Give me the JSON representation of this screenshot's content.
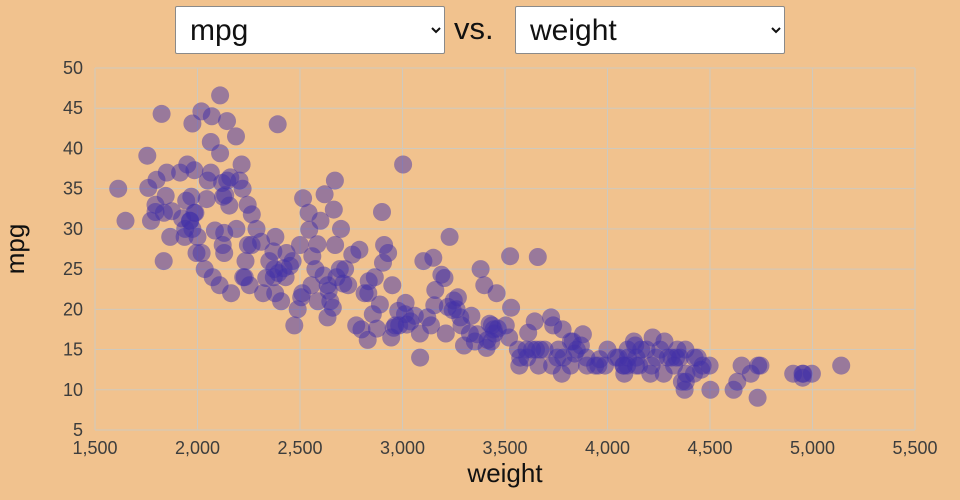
{
  "header": {
    "y_select": {
      "value": "mpg"
    },
    "vs_label": "vs.",
    "x_select": {
      "value": "weight"
    }
  },
  "colors": {
    "background": "#f1c28e",
    "gridline": "#cfc9bd",
    "tick_text": "#3d3d3d",
    "axis_text": "#111111",
    "point": "#4130a8",
    "select_bg": "#ffffff"
  },
  "chart_data": {
    "type": "scatter",
    "title": "",
    "xlabel": "weight",
    "ylabel": "mpg",
    "xlim": [
      1500,
      5500
    ],
    "ylim": [
      5,
      50
    ],
    "grid": true,
    "legend": "none",
    "x_tick_values": [
      1500,
      2000,
      2500,
      3000,
      3500,
      4000,
      4500,
      5000,
      5500
    ],
    "x_tick_labels": [
      "1,500",
      "2,000",
      "2,500",
      "3,000",
      "3,500",
      "4,000",
      "4,500",
      "5,000",
      "5,500"
    ],
    "y_tick_values": [
      5,
      10,
      15,
      20,
      25,
      30,
      35,
      40,
      45,
      50
    ],
    "y_tick_labels": [
      "5",
      "10",
      "15",
      "20",
      "25",
      "30",
      "35",
      "40",
      "45",
      "50"
    ],
    "point_color": "#4130a8",
    "point_opacity": 0.5,
    "point_radius": 9,
    "points": [
      [
        1613,
        35
      ],
      [
        1649,
        31
      ],
      [
        1755,
        39.1
      ],
      [
        1760,
        35.1
      ],
      [
        1773,
        31
      ],
      [
        1795,
        33
      ],
      [
        1795,
        32.1
      ],
      [
        1800,
        36.1
      ],
      [
        1825,
        44.3
      ],
      [
        1835,
        26
      ],
      [
        1836,
        32
      ],
      [
        1845,
        34.1
      ],
      [
        1850,
        37
      ],
      [
        1867,
        29
      ],
      [
        1875,
        32.2
      ],
      [
        1915,
        37
      ],
      [
        1925,
        31.3
      ],
      [
        1937,
        29
      ],
      [
        1940,
        30
      ],
      [
        1945,
        33.5
      ],
      [
        1950,
        38
      ],
      [
        1963,
        31
      ],
      [
        1965,
        31
      ],
      [
        1970,
        34
      ],
      [
        1975,
        30
      ],
      [
        1975,
        43.1
      ],
      [
        1985,
        32
      ],
      [
        1985,
        37.3
      ],
      [
        1990,
        32
      ],
      [
        1995,
        27
      ],
      [
        2000,
        29
      ],
      [
        2019,
        44.6
      ],
      [
        2020,
        27
      ],
      [
        2035,
        25
      ],
      [
        2045,
        33.7
      ],
      [
        2050,
        36
      ],
      [
        2065,
        37
      ],
      [
        2065,
        40.8
      ],
      [
        2070,
        44
      ],
      [
        2074,
        24
      ],
      [
        2085,
        29.8
      ],
      [
        2108,
        23
      ],
      [
        2110,
        46.6
      ],
      [
        2110,
        39.4
      ],
      [
        2120,
        35.7
      ],
      [
        2123,
        28
      ],
      [
        2125,
        34
      ],
      [
        2130,
        27
      ],
      [
        2130,
        29.5
      ],
      [
        2135,
        34.2
      ],
      [
        2144,
        43.4
      ],
      [
        2145,
        36
      ],
      [
        2155,
        32.9
      ],
      [
        2160,
        36.4
      ],
      [
        2164,
        22
      ],
      [
        2188,
        41.5
      ],
      [
        2190,
        30
      ],
      [
        2205,
        36
      ],
      [
        2215,
        38
      ],
      [
        2220,
        35
      ],
      [
        2223,
        24
      ],
      [
        2230,
        24
      ],
      [
        2234,
        26
      ],
      [
        2245,
        33
      ],
      [
        2246,
        28
      ],
      [
        2254,
        23
      ],
      [
        2264,
        28
      ],
      [
        2265,
        31.8
      ],
      [
        2288,
        30
      ],
      [
        2310,
        28.4
      ],
      [
        2320,
        22
      ],
      [
        2335,
        23.9
      ],
      [
        2350,
        26
      ],
      [
        2370,
        27.2
      ],
      [
        2372,
        24
      ],
      [
        2375,
        25
      ],
      [
        2379,
        22
      ],
      [
        2380,
        29
      ],
      [
        2391,
        43
      ],
      [
        2395,
        24.5
      ],
      [
        2408,
        21
      ],
      [
        2420,
        25.1
      ],
      [
        2430,
        24
      ],
      [
        2434,
        27
      ],
      [
        2451,
        25.4
      ],
      [
        2464,
        26
      ],
      [
        2472,
        18
      ],
      [
        2489,
        20
      ],
      [
        2500,
        28
      ],
      [
        2506,
        21.5
      ],
      [
        2511,
        22
      ],
      [
        2515,
        33.8
      ],
      [
        2542,
        32
      ],
      [
        2545,
        29.9
      ],
      [
        2556,
        23
      ],
      [
        2560,
        26.6
      ],
      [
        2575,
        25
      ],
      [
        2585,
        28.1
      ],
      [
        2587,
        21
      ],
      [
        2600,
        31
      ],
      [
        2615,
        24.2
      ],
      [
        2620,
        34.3
      ],
      [
        2634,
        19
      ],
      [
        2635,
        23
      ],
      [
        2640,
        22.3
      ],
      [
        2648,
        21
      ],
      [
        2660,
        20.2
      ],
      [
        2665,
        32.4
      ],
      [
        2670,
        36
      ],
      [
        2671,
        28
      ],
      [
        2678,
        24
      ],
      [
        2694,
        25
      ],
      [
        2700,
        30
      ],
      [
        2711,
        23.2
      ],
      [
        2720,
        25
      ],
      [
        2735,
        23
      ],
      [
        2755,
        26.8
      ],
      [
        2774,
        18
      ],
      [
        2790,
        27.4
      ],
      [
        2800,
        17.5
      ],
      [
        2815,
        22
      ],
      [
        2830,
        16.2
      ],
      [
        2833,
        22
      ],
      [
        2835,
        23.5
      ],
      [
        2855,
        19.4
      ],
      [
        2865,
        24
      ],
      [
        2875,
        17.6
      ],
      [
        2890,
        20.6
      ],
      [
        2900,
        32.1
      ],
      [
        2905,
        25.8
      ],
      [
        2910,
        28
      ],
      [
        2930,
        27
      ],
      [
        2945,
        16.5
      ],
      [
        2950,
        23
      ],
      [
        2957,
        17.7
      ],
      [
        2965,
        18
      ],
      [
        2979,
        19.8
      ],
      [
        2984,
        18
      ],
      [
        3003,
        38
      ],
      [
        3012,
        19.4
      ],
      [
        3015,
        20.8
      ],
      [
        3021,
        18.1
      ],
      [
        3039,
        18.5
      ],
      [
        3060,
        19.2
      ],
      [
        3085,
        17
      ],
      [
        3086,
        14
      ],
      [
        3102,
        26
      ],
      [
        3121,
        19
      ],
      [
        3139,
        18
      ],
      [
        3150,
        26.4
      ],
      [
        3155,
        20.5
      ],
      [
        3160,
        22.4
      ],
      [
        3190,
        24.3
      ],
      [
        3205,
        23.9
      ],
      [
        3211,
        17
      ],
      [
        3221,
        20.3
      ],
      [
        3230,
        29
      ],
      [
        3245,
        19.9
      ],
      [
        3250,
        21.1
      ],
      [
        3264,
        20
      ],
      [
        3270,
        21.5
      ],
      [
        3282,
        19
      ],
      [
        3288,
        18
      ],
      [
        3300,
        15.5
      ],
      [
        3329,
        17
      ],
      [
        3336,
        19.2
      ],
      [
        3353,
        16
      ],
      [
        3365,
        16.9
      ],
      [
        3381,
        25
      ],
      [
        3399,
        23
      ],
      [
        3410,
        15.2
      ],
      [
        3415,
        16.2
      ],
      [
        3425,
        18.2
      ],
      [
        3433,
        16
      ],
      [
        3436,
        18
      ],
      [
        3445,
        17.5
      ],
      [
        3449,
        17
      ],
      [
        3459,
        22
      ],
      [
        3465,
        17.6
      ],
      [
        3504,
        18
      ],
      [
        3520,
        16.5
      ],
      [
        3525,
        26.6
      ],
      [
        3530,
        20.2
      ],
      [
        3563,
        15
      ],
      [
        3570,
        13
      ],
      [
        3574,
        14
      ],
      [
        3605,
        15
      ],
      [
        3609,
        14
      ],
      [
        3613,
        17.1
      ],
      [
        3632,
        15
      ],
      [
        3645,
        18.5
      ],
      [
        3651,
        15
      ],
      [
        3660,
        26.5
      ],
      [
        3664,
        13
      ],
      [
        3672,
        15
      ],
      [
        3693,
        15
      ],
      [
        3725,
        19
      ],
      [
        3730,
        13
      ],
      [
        3735,
        18
      ],
      [
        3755,
        14
      ],
      [
        3761,
        15
      ],
      [
        3777,
        12
      ],
      [
        3781,
        17.5
      ],
      [
        3785,
        14
      ],
      [
        3820,
        13
      ],
      [
        3821,
        16
      ],
      [
        3830,
        16
      ],
      [
        3840,
        14.5
      ],
      [
        3850,
        15
      ],
      [
        3870,
        15.5
      ],
      [
        3880,
        16.9
      ],
      [
        3897,
        14
      ],
      [
        3900,
        13
      ],
      [
        3940,
        13
      ],
      [
        3955,
        13
      ],
      [
        3962,
        13.8
      ],
      [
        3988,
        13
      ],
      [
        4000,
        15
      ],
      [
        4042,
        14
      ],
      [
        4054,
        14
      ],
      [
        4077,
        13
      ],
      [
        4080,
        13
      ],
      [
        4082,
        12
      ],
      [
        4096,
        13
      ],
      [
        4098,
        15
      ],
      [
        4100,
        14
      ],
      [
        4129,
        16
      ],
      [
        4135,
        15.5
      ],
      [
        4140,
        13
      ],
      [
        4141,
        14
      ],
      [
        4154,
        13
      ],
      [
        4165,
        15
      ],
      [
        4190,
        15
      ],
      [
        4209,
        12
      ],
      [
        4215,
        13
      ],
      [
        4220,
        16.5
      ],
      [
        4237,
        14
      ],
      [
        4257,
        15
      ],
      [
        4274,
        12
      ],
      [
        4278,
        16
      ],
      [
        4294,
        14
      ],
      [
        4312,
        14
      ],
      [
        4325,
        13
      ],
      [
        4335,
        14
      ],
      [
        4341,
        15
      ],
      [
        4354,
        14
      ],
      [
        4363,
        11
      ],
      [
        4376,
        10
      ],
      [
        4380,
        15
      ],
      [
        4382,
        11
      ],
      [
        4385,
        12
      ],
      [
        4422,
        12
      ],
      [
        4425,
        14
      ],
      [
        4440,
        14
      ],
      [
        4457,
        12.5
      ],
      [
        4464,
        13
      ],
      [
        4498,
        13
      ],
      [
        4502,
        10
      ],
      [
        4615,
        10
      ],
      [
        4633,
        11
      ],
      [
        4654,
        13
      ],
      [
        4699,
        12
      ],
      [
        4732,
        9
      ],
      [
        4735,
        13
      ],
      [
        4746,
        13
      ],
      [
        4906,
        12
      ],
      [
        4951,
        12
      ],
      [
        4952,
        11.5
      ],
      [
        4955,
        12
      ],
      [
        4997,
        12
      ],
      [
        5140,
        13
      ]
    ]
  }
}
